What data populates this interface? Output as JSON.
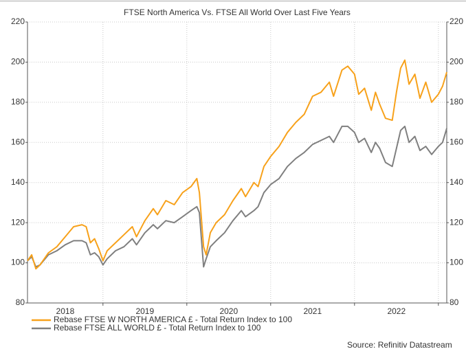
{
  "chart_data": {
    "type": "line",
    "title": "FTSE North America Vs. FTSE All World Over Last Five Years",
    "source": "Source: Refinitiv Datastream",
    "x": [
      2018.1,
      2018.15,
      2018.2,
      2018.25,
      2018.35,
      2018.45,
      2018.55,
      2018.65,
      2018.75,
      2018.8,
      2018.85,
      2018.9,
      2018.95,
      2019.0,
      2019.05,
      2019.15,
      2019.25,
      2019.35,
      2019.4,
      2019.5,
      2019.6,
      2019.65,
      2019.75,
      2019.85,
      2019.95,
      2020.05,
      2020.12,
      2020.15,
      2020.2,
      2020.23,
      2020.28,
      2020.35,
      2020.45,
      2020.55,
      2020.65,
      2020.7,
      2020.8,
      2020.85,
      2020.92,
      2021.0,
      2021.1,
      2021.2,
      2021.3,
      2021.4,
      2021.5,
      2021.6,
      2021.7,
      2021.75,
      2021.85,
      2021.92,
      2022.0,
      2022.05,
      2022.12,
      2022.2,
      2022.25,
      2022.3,
      2022.37,
      2022.45,
      2022.5,
      2022.55,
      2022.6,
      2022.65,
      2022.72,
      2022.78,
      2022.85,
      2022.92,
      2023.0,
      2023.05,
      2023.1
    ],
    "series": [
      {
        "name": "Rebase FTSE W NORTH AMERICA £ - Total Return Index to 100",
        "color": "#f7a11a",
        "values": [
          101,
          104,
          97,
          99,
          105,
          108,
          113,
          118,
          119,
          118,
          110,
          112,
          107,
          101,
          106,
          110,
          114,
          118,
          113,
          121,
          127,
          124,
          131,
          129,
          135,
          138,
          142,
          135,
          108,
          104,
          115,
          120,
          124,
          131,
          137,
          133,
          140,
          138,
          148,
          153,
          158,
          165,
          170,
          174,
          183,
          185,
          190,
          183,
          196,
          198,
          194,
          184,
          187,
          176,
          185,
          179,
          172,
          171,
          185,
          197,
          201,
          189,
          194,
          182,
          190,
          180,
          184,
          188,
          195
        ]
      },
      {
        "name": "Rebase FTSE ALL WORLD £ - Total Return Index to 100",
        "color": "#7f7f7f",
        "values": [
          101,
          103,
          98,
          99,
          104,
          106,
          109,
          111,
          111,
          110,
          104,
          105,
          103,
          99,
          102,
          106,
          108,
          112,
          109,
          115,
          119,
          117,
          121,
          120,
          123,
          126,
          128,
          125,
          98,
          102,
          108,
          111,
          115,
          121,
          126,
          123,
          126,
          128,
          135,
          139,
          142,
          148,
          152,
          155,
          159,
          161,
          163,
          160,
          168,
          168,
          165,
          160,
          162,
          155,
          160,
          157,
          150,
          148,
          157,
          166,
          168,
          160,
          163,
          156,
          158,
          154,
          158,
          160,
          167
        ]
      }
    ],
    "xlim": [
      2018.1,
      2023.1
    ],
    "xticks": [
      {
        "value": 2018.55,
        "label": "2018"
      },
      {
        "value": 2019.5,
        "label": "2019"
      },
      {
        "value": 2020.5,
        "label": "2020"
      },
      {
        "value": 2021.5,
        "label": "2021"
      },
      {
        "value": 2022.5,
        "label": "2022"
      }
    ],
    "xgrid": [
      2019,
      2020,
      2021,
      2022,
      2023
    ],
    "ylim": [
      80,
      220
    ],
    "yticks": [
      80,
      100,
      120,
      140,
      160,
      180,
      200,
      220
    ],
    "y2lim": [
      80,
      220
    ],
    "y2ticks": [
      80,
      100,
      120,
      140,
      160,
      180,
      200,
      220
    ],
    "grid": true
  }
}
